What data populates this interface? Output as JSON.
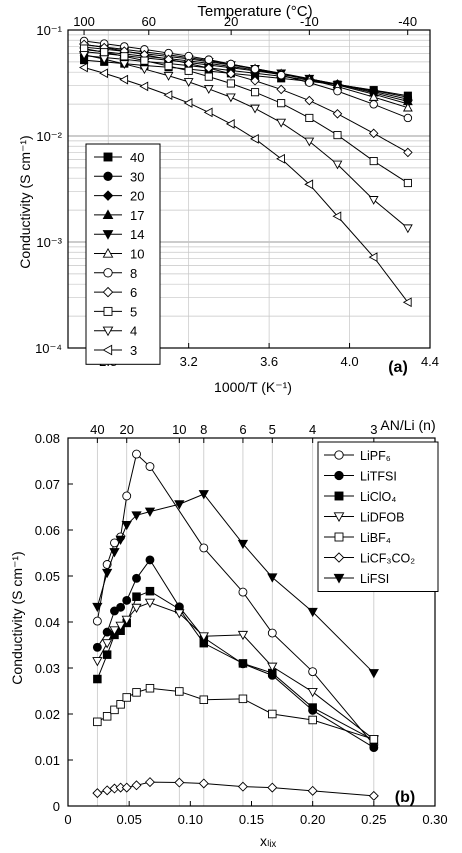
{
  "chart_data": [
    {
      "type": "line",
      "panel_label": "(a)",
      "xlabel": "1000/T (K⁻¹)",
      "ylabel": "Conductivity (S cm⁻¹)",
      "top_label": "Temperature (°C)",
      "x_scale": "linear",
      "y_scale": "log",
      "xlim": [
        2.6,
        4.4
      ],
      "ylim": [
        0.0001,
        0.1
      ],
      "grid": true,
      "x_ticks": [
        "2.8",
        "3.2",
        "3.6",
        "4.0",
        "4.4"
      ],
      "y_ticks": [
        "10⁻⁴",
        "10⁻³",
        "10⁻²",
        "10⁻¹"
      ],
      "top_ticks": [
        "100",
        "60",
        "20",
        "-10",
        "-40"
      ],
      "legend_position": "left",
      "x": [
        2.68,
        2.78,
        2.88,
        2.98,
        3.1,
        3.2,
        3.3,
        3.41,
        3.53,
        3.66,
        3.8,
        3.94,
        4.12,
        4.29
      ],
      "series": [
        {
          "name": "40",
          "marker": "square-filled",
          "values": [
            0.052,
            0.0501,
            0.0482,
            0.0463,
            0.0445,
            0.0427,
            0.0409,
            0.039,
            0.037,
            0.035,
            0.0328,
            0.0305,
            0.0271,
            0.024
          ]
        },
        {
          "name": "30",
          "marker": "circle-filled",
          "values": [
            0.0573,
            0.055,
            0.0528,
            0.0505,
            0.0483,
            0.0461,
            0.0439,
            0.0415,
            0.0391,
            0.0366,
            0.0337,
            0.0307,
            0.0269,
            0.0232
          ]
        },
        {
          "name": "20",
          "marker": "diamond-filled",
          "values": [
            0.0624,
            0.0598,
            0.0572,
            0.0546,
            0.0518,
            0.0494,
            0.0467,
            0.044,
            0.0411,
            0.038,
            0.0345,
            0.0309,
            0.0263,
            0.0222
          ]
        },
        {
          "name": "17",
          "marker": "triangle-up-filled",
          "values": [
            0.0653,
            0.0624,
            0.0594,
            0.0566,
            0.0537,
            0.0511,
            0.0484,
            0.0453,
            0.042,
            0.0386,
            0.0346,
            0.0307,
            0.0256,
            0.0212
          ]
        },
        {
          "name": "14",
          "marker": "triangle-down-filled",
          "values": [
            0.069,
            0.066,
            0.0628,
            0.0597,
            0.0563,
            0.0534,
            0.0502,
            0.0468,
            0.0431,
            0.0391,
            0.0348,
            0.0303,
            0.0248,
            0.0201
          ]
        },
        {
          "name": "10",
          "marker": "triangle-up-open",
          "values": [
            0.0728,
            0.0692,
            0.0656,
            0.0621,
            0.0582,
            0.0549,
            0.0514,
            0.0475,
            0.0433,
            0.0388,
            0.0339,
            0.0292,
            0.0233,
            0.0185
          ]
        },
        {
          "name": "8",
          "marker": "circle-open",
          "values": [
            0.0788,
            0.0744,
            0.07,
            0.0656,
            0.0606,
            0.0567,
            0.0525,
            0.0478,
            0.0428,
            0.0375,
            0.0319,
            0.0265,
            0.0199,
            0.0148
          ]
        },
        {
          "name": "6",
          "marker": "diamond-open",
          "values": [
            0.0732,
            0.0683,
            0.0633,
            0.0585,
            0.0529,
            0.0483,
            0.0437,
            0.0386,
            0.0332,
            0.0275,
            0.0216,
            0.0162,
            0.0106,
            0.007
          ]
        },
        {
          "name": "5",
          "marker": "square-open",
          "values": [
            0.0668,
            0.0617,
            0.0565,
            0.0514,
            0.0457,
            0.0412,
            0.0363,
            0.0313,
            0.0259,
            0.0204,
            0.0148,
            0.0102,
            0.0058,
            0.0036
          ]
        },
        {
          "name": "4",
          "marker": "triangle-down-open",
          "values": [
            0.0584,
            0.0531,
            0.0478,
            0.0428,
            0.037,
            0.0324,
            0.0278,
            0.0232,
            0.0182,
            0.0134,
            0.0089,
            0.0054,
            0.0025,
            0.00135
          ]
        },
        {
          "name": "3",
          "marker": "triangle-left-open",
          "values": [
            0.0443,
            0.0391,
            0.034,
            0.0294,
            0.0243,
            0.0205,
            0.0167,
            0.013,
            0.0094,
            0.0061,
            0.0035,
            0.00175,
            0.00072,
            0.00027
          ]
        }
      ]
    },
    {
      "type": "line",
      "panel_label": "(b)",
      "xlabel": "xₗᵢₓ",
      "ylabel": "Conductivity (S cm⁻¹)",
      "top_label": "AN/Li (n)",
      "xlim": [
        0,
        0.3
      ],
      "ylim": [
        0,
        0.08
      ],
      "grid": "vertical",
      "x_ticks": [
        "0",
        "0.05",
        "0.10",
        "0.15",
        "0.20",
        "0.25",
        "0.30"
      ],
      "y_ticks": [
        "0",
        "0.01",
        "0.02",
        "0.03",
        "0.04",
        "0.05",
        "0.06",
        "0.07",
        "0.08"
      ],
      "top_ticks": [
        "40",
        "20",
        "10",
        "8",
        "6",
        "5",
        "4",
        "3"
      ],
      "top_tick_x": [
        0.024,
        0.048,
        0.091,
        0.111,
        0.143,
        0.167,
        0.2,
        0.25
      ],
      "legend_position": "top-right",
      "x": [
        0.024,
        0.032,
        0.038,
        0.043,
        0.048,
        0.056,
        0.067,
        0.091,
        0.111,
        0.143,
        0.167,
        0.2,
        0.25
      ],
      "series": [
        {
          "name": "LiPF₆",
          "marker": "circle-open",
          "values": [
            0.0402,
            0.0525,
            0.0572,
            0.0585,
            0.0674,
            0.0765,
            0.0738,
            null,
            0.0561,
            0.0465,
            0.0376,
            0.0292,
            0.0133
          ]
        },
        {
          "name": "LiTFSI",
          "marker": "circle-filled",
          "values": [
            0.0345,
            0.0378,
            0.0424,
            0.0432,
            0.0447,
            0.0495,
            0.0535,
            0.0433,
            0.0366,
            0.0309,
            0.0284,
            0.0208,
            0.0127
          ]
        },
        {
          "name": "LiClO₄",
          "marker": "square-filled",
          "values": [
            0.0276,
            0.0329,
            0.0372,
            0.0381,
            0.0398,
            0.0455,
            0.0467,
            0.0428,
            0.0354,
            0.031,
            0.0289,
            0.0214,
            0.0143
          ]
        },
        {
          "name": "LiDFOB",
          "marker": "triangle-down-open",
          "values": [
            0.0315,
            0.0354,
            0.0382,
            0.0392,
            0.0405,
            0.0431,
            0.0442,
            0.0419,
            0.0369,
            0.0372,
            0.0303,
            0.0248,
            0.0145
          ]
        },
        {
          "name": "LiBF₄",
          "marker": "square-open",
          "values": [
            0.0183,
            0.0195,
            0.0209,
            0.0221,
            0.0236,
            0.0247,
            0.0256,
            0.0249,
            0.0231,
            0.0233,
            0.02,
            0.0187,
            0.0145
          ]
        },
        {
          "name": "LiCF₃CO₂",
          "marker": "diamond-open",
          "values": [
            0.0028,
            0.0034,
            0.0038,
            0.004,
            0.004,
            0.0045,
            0.0052,
            0.0051,
            0.0049,
            0.0042,
            0.004,
            0.0033,
            0.0022
          ]
        },
        {
          "name": "LiFSI",
          "marker": "triangle-down-filled",
          "values": [
            0.0433,
            0.0507,
            0.0552,
            0.0579,
            0.0611,
            0.0632,
            0.064,
            0.0656,
            0.0678,
            0.057,
            0.0497,
            0.0422,
            0.0289
          ]
        }
      ]
    }
  ]
}
